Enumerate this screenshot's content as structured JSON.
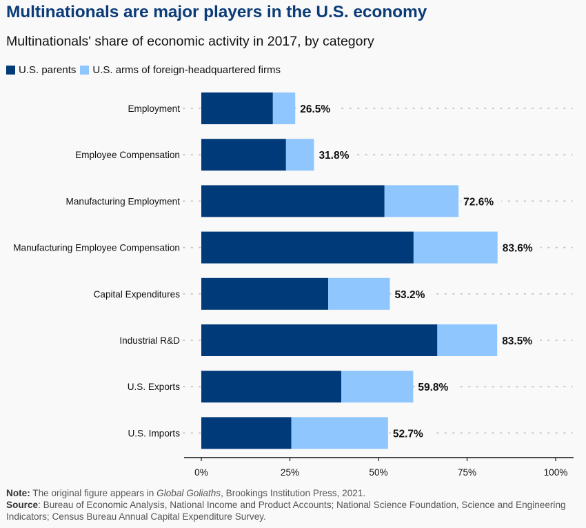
{
  "chart_data": {
    "type": "bar",
    "orientation": "horizontal",
    "stacked": true,
    "title": "Multinationals are major players in the U.S. economy",
    "subtitle": "Multinationals' share of economic activity in 2017, by category",
    "xlabel": "",
    "ylabel": "",
    "xlim": [
      0,
      100
    ],
    "x_ticks": [
      0,
      25,
      50,
      75,
      100
    ],
    "x_tick_labels": [
      "0%",
      "25%",
      "50%",
      "75%",
      "100%"
    ],
    "legend_position": "top-left",
    "grid": "dotted row guides",
    "categories": [
      "Employment",
      "Employee Compensation",
      "Manufacturing Employment",
      "Manufacturing Employee Compensation",
      "Capital Expenditures",
      "Industrial R&D",
      "U.S. Exports",
      "U.S. Imports"
    ],
    "series": [
      {
        "name": "U.S. parents",
        "color": "#003a79",
        "values": [
          20.2,
          23.9,
          51.7,
          59.9,
          35.8,
          66.6,
          39.5,
          25.4
        ]
      },
      {
        "name": "U.S. arms of foreign-headquartered firms",
        "color": "#8ec6fd",
        "values": [
          6.3,
          7.9,
          20.9,
          23.7,
          17.4,
          16.9,
          20.3,
          27.3
        ]
      }
    ],
    "totals": [
      26.5,
      31.8,
      72.6,
      83.6,
      53.2,
      83.5,
      59.8,
      52.7
    ],
    "total_labels": [
      "26.5%",
      "31.8%",
      "72.6%",
      "83.6%",
      "53.2%",
      "83.5%",
      "59.8%",
      "52.7%"
    ]
  },
  "footer": {
    "note_label": "Note:",
    "note_pre": " The original figure appears in ",
    "note_italic": "Global Goliaths",
    "note_post": ", Brookings Institution Press, 2021.",
    "source_label": "Source",
    "source_text": ": Bureau of Economic Analysis, National Income and Product Accounts; National Science Foundation, Science and Engineering Indicators; Census Bureau Annual Capital Expenditure Survey."
  }
}
